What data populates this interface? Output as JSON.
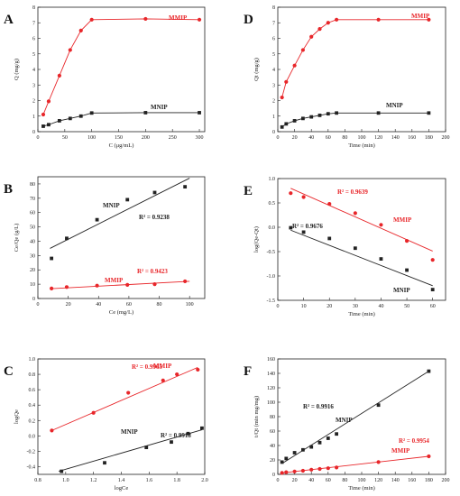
{
  "chart_data": [
    {
      "id": "A",
      "type": "line",
      "panel_label": "A",
      "xlabel": "C (μg/mL)",
      "ylabel": "Q (mg/g)",
      "xlim": [
        0,
        310
      ],
      "ylim": [
        0,
        8
      ],
      "xticks": [
        "0",
        "50",
        "100",
        "150",
        "200",
        "250",
        "300"
      ],
      "yticks": [
        "0",
        "1",
        "2",
        "3",
        "4",
        "5",
        "6",
        "7",
        "8"
      ],
      "grid": false,
      "series": [
        {
          "name": "MMIP",
          "color": "#e8262a",
          "marker": "circle",
          "x": [
            10,
            20,
            40,
            60,
            80,
            100,
            200,
            300
          ],
          "y": [
            1.1,
            1.95,
            3.6,
            5.25,
            6.5,
            7.2,
            7.25,
            7.2
          ]
        },
        {
          "name": "MNIP",
          "color": "#222222",
          "marker": "square",
          "x": [
            10,
            20,
            40,
            60,
            80,
            100,
            200,
            300
          ],
          "y": [
            0.35,
            0.45,
            0.7,
            0.85,
            1.0,
            1.2,
            1.22,
            1.22
          ]
        }
      ]
    },
    {
      "id": "D",
      "type": "line",
      "panel_label": "D",
      "xlabel": "Time (min)",
      "ylabel": "Qt (mg/g)",
      "xlim": [
        0,
        200
      ],
      "ylim": [
        0,
        8
      ],
      "xticks": [
        "0",
        "20",
        "40",
        "60",
        "80",
        "100",
        "120",
        "140",
        "160",
        "180",
        "200"
      ],
      "yticks": [
        "0",
        "1",
        "2",
        "3",
        "4",
        "5",
        "6",
        "7",
        "8"
      ],
      "grid": false,
      "series": [
        {
          "name": "MMIP",
          "color": "#e8262a",
          "marker": "circle",
          "x": [
            5,
            10,
            20,
            30,
            40,
            50,
            60,
            70,
            120,
            180
          ],
          "y": [
            2.2,
            3.2,
            4.25,
            5.25,
            6.1,
            6.6,
            7.0,
            7.2,
            7.2,
            7.2
          ]
        },
        {
          "name": "MNIP",
          "color": "#222222",
          "marker": "square",
          "x": [
            5,
            10,
            20,
            30,
            40,
            50,
            60,
            70,
            120,
            180
          ],
          "y": [
            0.3,
            0.5,
            0.7,
            0.85,
            0.95,
            1.05,
            1.15,
            1.2,
            1.2,
            1.2
          ]
        }
      ]
    },
    {
      "id": "B",
      "type": "scatter",
      "panel_label": "B",
      "xlabel": "Ce (mg/L)",
      "ylabel": "Ce/Qe (g/L)",
      "xlim": [
        0,
        110
      ],
      "ylim": [
        0,
        85
      ],
      "xticks": [
        "0",
        "20",
        "40",
        "60",
        "80",
        "100"
      ],
      "yticks": [
        "0",
        "10",
        "20",
        "30",
        "40",
        "50",
        "60",
        "70",
        "80"
      ],
      "grid": false,
      "series": [
        {
          "name": "MNIP",
          "color": "#222222",
          "marker": "square",
          "x": [
            9,
            19,
            39,
            59,
            77,
            97
          ],
          "y": [
            28,
            42,
            55,
            69,
            74,
            78
          ],
          "fit": [
            [
              8,
              35
            ],
            [
              100,
              84
            ]
          ],
          "r2": "R² = 0.9238"
        },
        {
          "name": "MMIP",
          "color": "#e8262a",
          "marker": "circle",
          "x": [
            9,
            19,
            39,
            59,
            77,
            97
          ],
          "y": [
            7,
            8,
            9,
            9.5,
            10,
            12
          ],
          "fit": [
            [
              8,
              6.8
            ],
            [
              100,
              12
            ]
          ],
          "r2": "R² = 0.9423"
        }
      ]
    },
    {
      "id": "E",
      "type": "scatter",
      "panel_label": "E",
      "xlabel": "Time (min)",
      "ylabel": "log(Qe-Qt)",
      "xlim": [
        0,
        65
      ],
      "ylim": [
        -1.5,
        1.0
      ],
      "xticks": [
        "0",
        "10",
        "20",
        "30",
        "40",
        "50",
        "60"
      ],
      "yticks": [
        "-1.5",
        "-1.0",
        "-0.5",
        "0.0",
        "0.5",
        "1.0"
      ],
      "grid": false,
      "series": [
        {
          "name": "MMIP",
          "color": "#e8262a",
          "marker": "circle",
          "x": [
            5,
            10,
            20,
            30,
            40,
            50,
            60
          ],
          "y": [
            0.7,
            0.62,
            0.48,
            0.29,
            0.05,
            -0.28,
            -0.67
          ],
          "fit": [
            [
              5,
              0.8
            ],
            [
              60,
              -0.49
            ]
          ],
          "r2": "R² = 0.9639"
        },
        {
          "name": "MNIP",
          "color": "#222222",
          "marker": "square",
          "x": [
            5,
            10,
            20,
            30,
            40,
            50,
            60
          ],
          "y": [
            -0.01,
            -0.1,
            -0.23,
            -0.43,
            -0.65,
            -0.88,
            -1.28
          ],
          "fit": [
            [
              5,
              -0.06
            ],
            [
              60,
              -1.2
            ]
          ],
          "r2": "R² = 0.9676"
        }
      ]
    },
    {
      "id": "C",
      "type": "scatter",
      "panel_label": "C",
      "xlabel": "logCe",
      "ylabel": "logQe",
      "xlim": [
        0.8,
        2.0
      ],
      "ylim": [
        -0.5,
        1.0
      ],
      "xticks": [
        "0.8",
        "1.0",
        "1.2",
        "1.4",
        "1.6",
        "1.8",
        "2.0"
      ],
      "yticks": [
        "-0.4",
        "-0.2",
        "0.0",
        "0.2",
        "0.4",
        "0.6",
        "0.8",
        "1.0"
      ],
      "grid": false,
      "series": [
        {
          "name": "MMIP",
          "color": "#e8262a",
          "marker": "circle",
          "x": [
            0.9,
            1.2,
            1.45,
            1.7,
            1.8,
            1.95
          ],
          "y": [
            0.07,
            0.3,
            0.56,
            0.72,
            0.8,
            0.86
          ],
          "fit": [
            [
              0.9,
              0.07
            ],
            [
              1.95,
              0.89
            ]
          ],
          "r2": "R² = 0.9965"
        },
        {
          "name": "MNIP",
          "color": "#222222",
          "marker": "square",
          "x": [
            0.97,
            1.28,
            1.58,
            1.76,
            1.88,
            1.98
          ],
          "y": [
            -0.46,
            -0.35,
            -0.15,
            -0.08,
            0.03,
            0.1
          ],
          "fit": [
            [
              0.95,
              -0.46
            ],
            [
              1.98,
              0.08
            ]
          ],
          "r2": "R² = 0.9918"
        }
      ]
    },
    {
      "id": "F",
      "type": "scatter",
      "panel_label": "F",
      "xlabel": "Time (min)",
      "ylabel": "t/Qt (min mg/mg)",
      "xlim": [
        0,
        200
      ],
      "ylim": [
        0,
        160
      ],
      "xticks": [
        "0",
        "20",
        "40",
        "60",
        "80",
        "100",
        "120",
        "140",
        "160",
        "180",
        "200"
      ],
      "yticks": [
        "0",
        "20",
        "40",
        "60",
        "80",
        "100",
        "120",
        "140",
        "160"
      ],
      "grid": false,
      "series": [
        {
          "name": "MNIP",
          "color": "#222222",
          "marker": "square",
          "x": [
            5,
            10,
            20,
            30,
            40,
            50,
            60,
            70,
            120,
            180
          ],
          "y": [
            17,
            22,
            30,
            34,
            38,
            44,
            50,
            56,
            96,
            143
          ],
          "fit": [
            [
              5,
              15
            ],
            [
              180,
              143
            ]
          ],
          "r2": "R² = 0.9916"
        },
        {
          "name": "MMIP",
          "color": "#e8262a",
          "marker": "circle",
          "x": [
            5,
            10,
            20,
            30,
            40,
            50,
            60,
            70,
            120,
            180
          ],
          "y": [
            2,
            3,
            4,
            5,
            6.5,
            7.5,
            8.5,
            9.5,
            17,
            25
          ],
          "fit": [
            [
              5,
              2
            ],
            [
              180,
              25
            ]
          ],
          "r2": "R² = 0.9954"
        }
      ]
    }
  ]
}
